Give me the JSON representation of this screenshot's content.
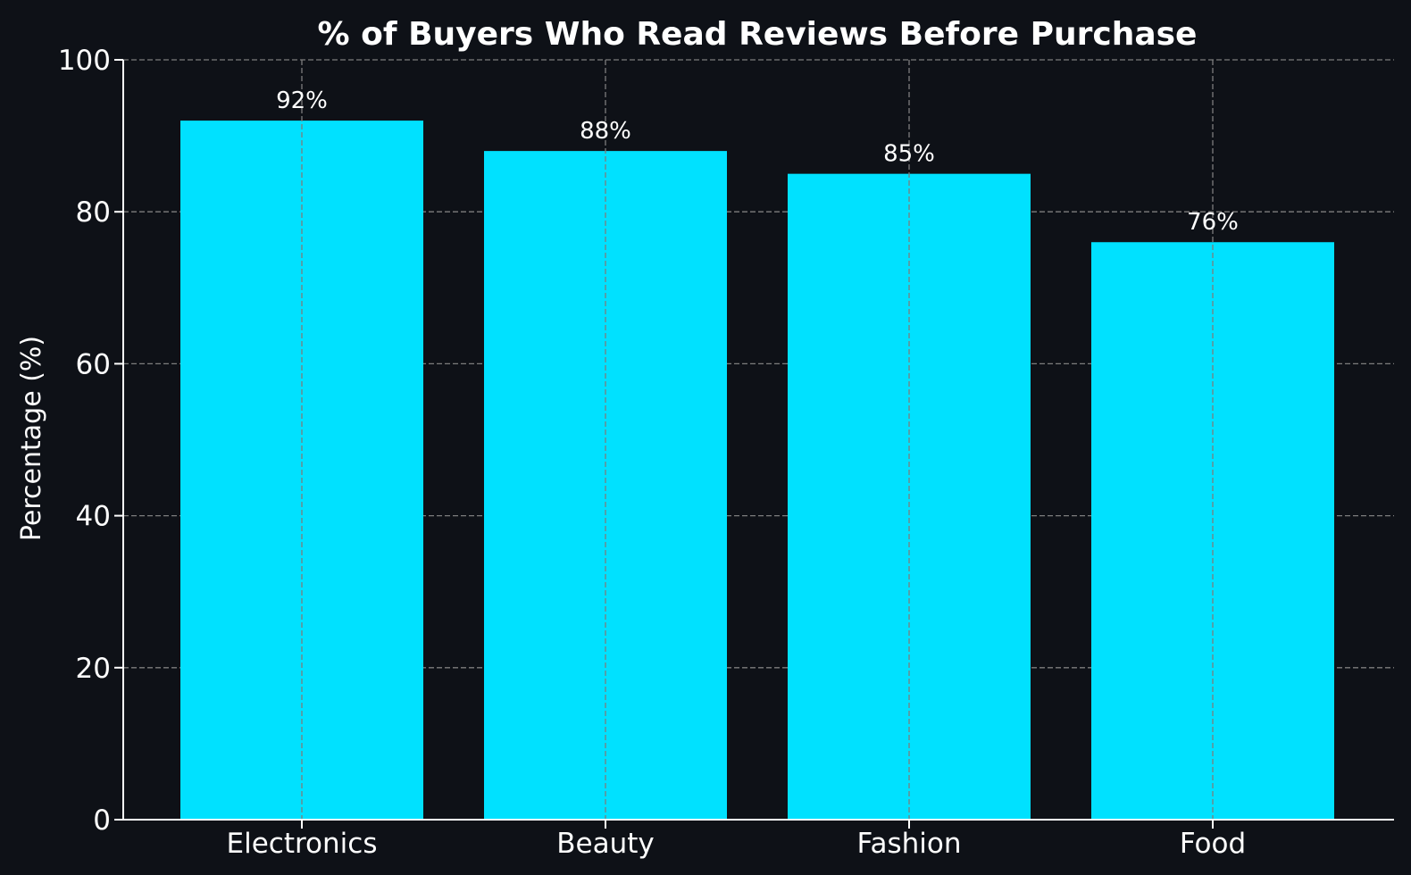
{
  "chart_data": {
    "type": "bar",
    "title": "% of Buyers Who Read Reviews Before Purchase",
    "xlabel": "",
    "ylabel": "Percentage (%)",
    "categories": [
      "Electronics",
      "Beauty",
      "Fashion",
      "Food"
    ],
    "values": [
      92,
      88,
      85,
      76
    ],
    "value_labels": [
      "92%",
      "88%",
      "85%",
      "76%"
    ],
    "ylim": [
      0,
      100
    ],
    "yticks": [
      0,
      20,
      40,
      60,
      80,
      100
    ],
    "ytick_labels": [
      "0",
      "20",
      "40",
      "60",
      "80",
      "100"
    ],
    "grid": true,
    "legend": "none",
    "colors": {
      "background": "#0e1117",
      "bar": "#00e1ff",
      "text": "#ffffff",
      "grid": "#7d7d7d"
    }
  }
}
